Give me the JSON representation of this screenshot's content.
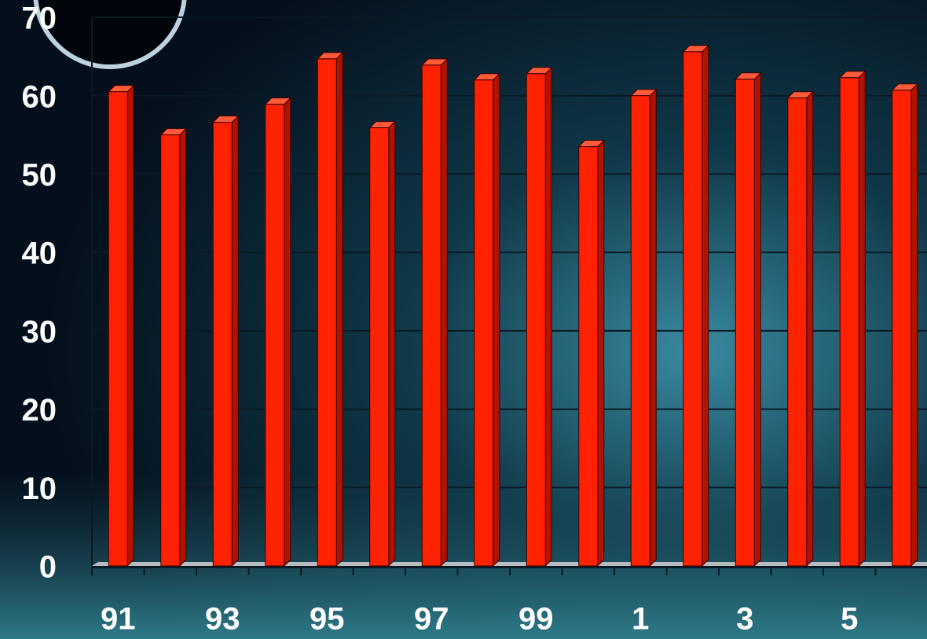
{
  "chart_data": {
    "type": "bar",
    "categories": [
      "91",
      null,
      "93",
      null,
      "95",
      null,
      "97",
      null,
      "99",
      null,
      "1",
      null,
      "3",
      null,
      "5",
      null
    ],
    "values": [
      60.5,
      55,
      56.6,
      58.9,
      64.7,
      55.9,
      63.9,
      62,
      62.8,
      53.5,
      60,
      65.6,
      62.1,
      59.7,
      62.3,
      60.7
    ],
    "color": "#ff2200",
    "ylim": [
      0,
      70
    ],
    "yticks": [
      0,
      10,
      20,
      30,
      40,
      50,
      60,
      70
    ],
    "grid": true
  }
}
